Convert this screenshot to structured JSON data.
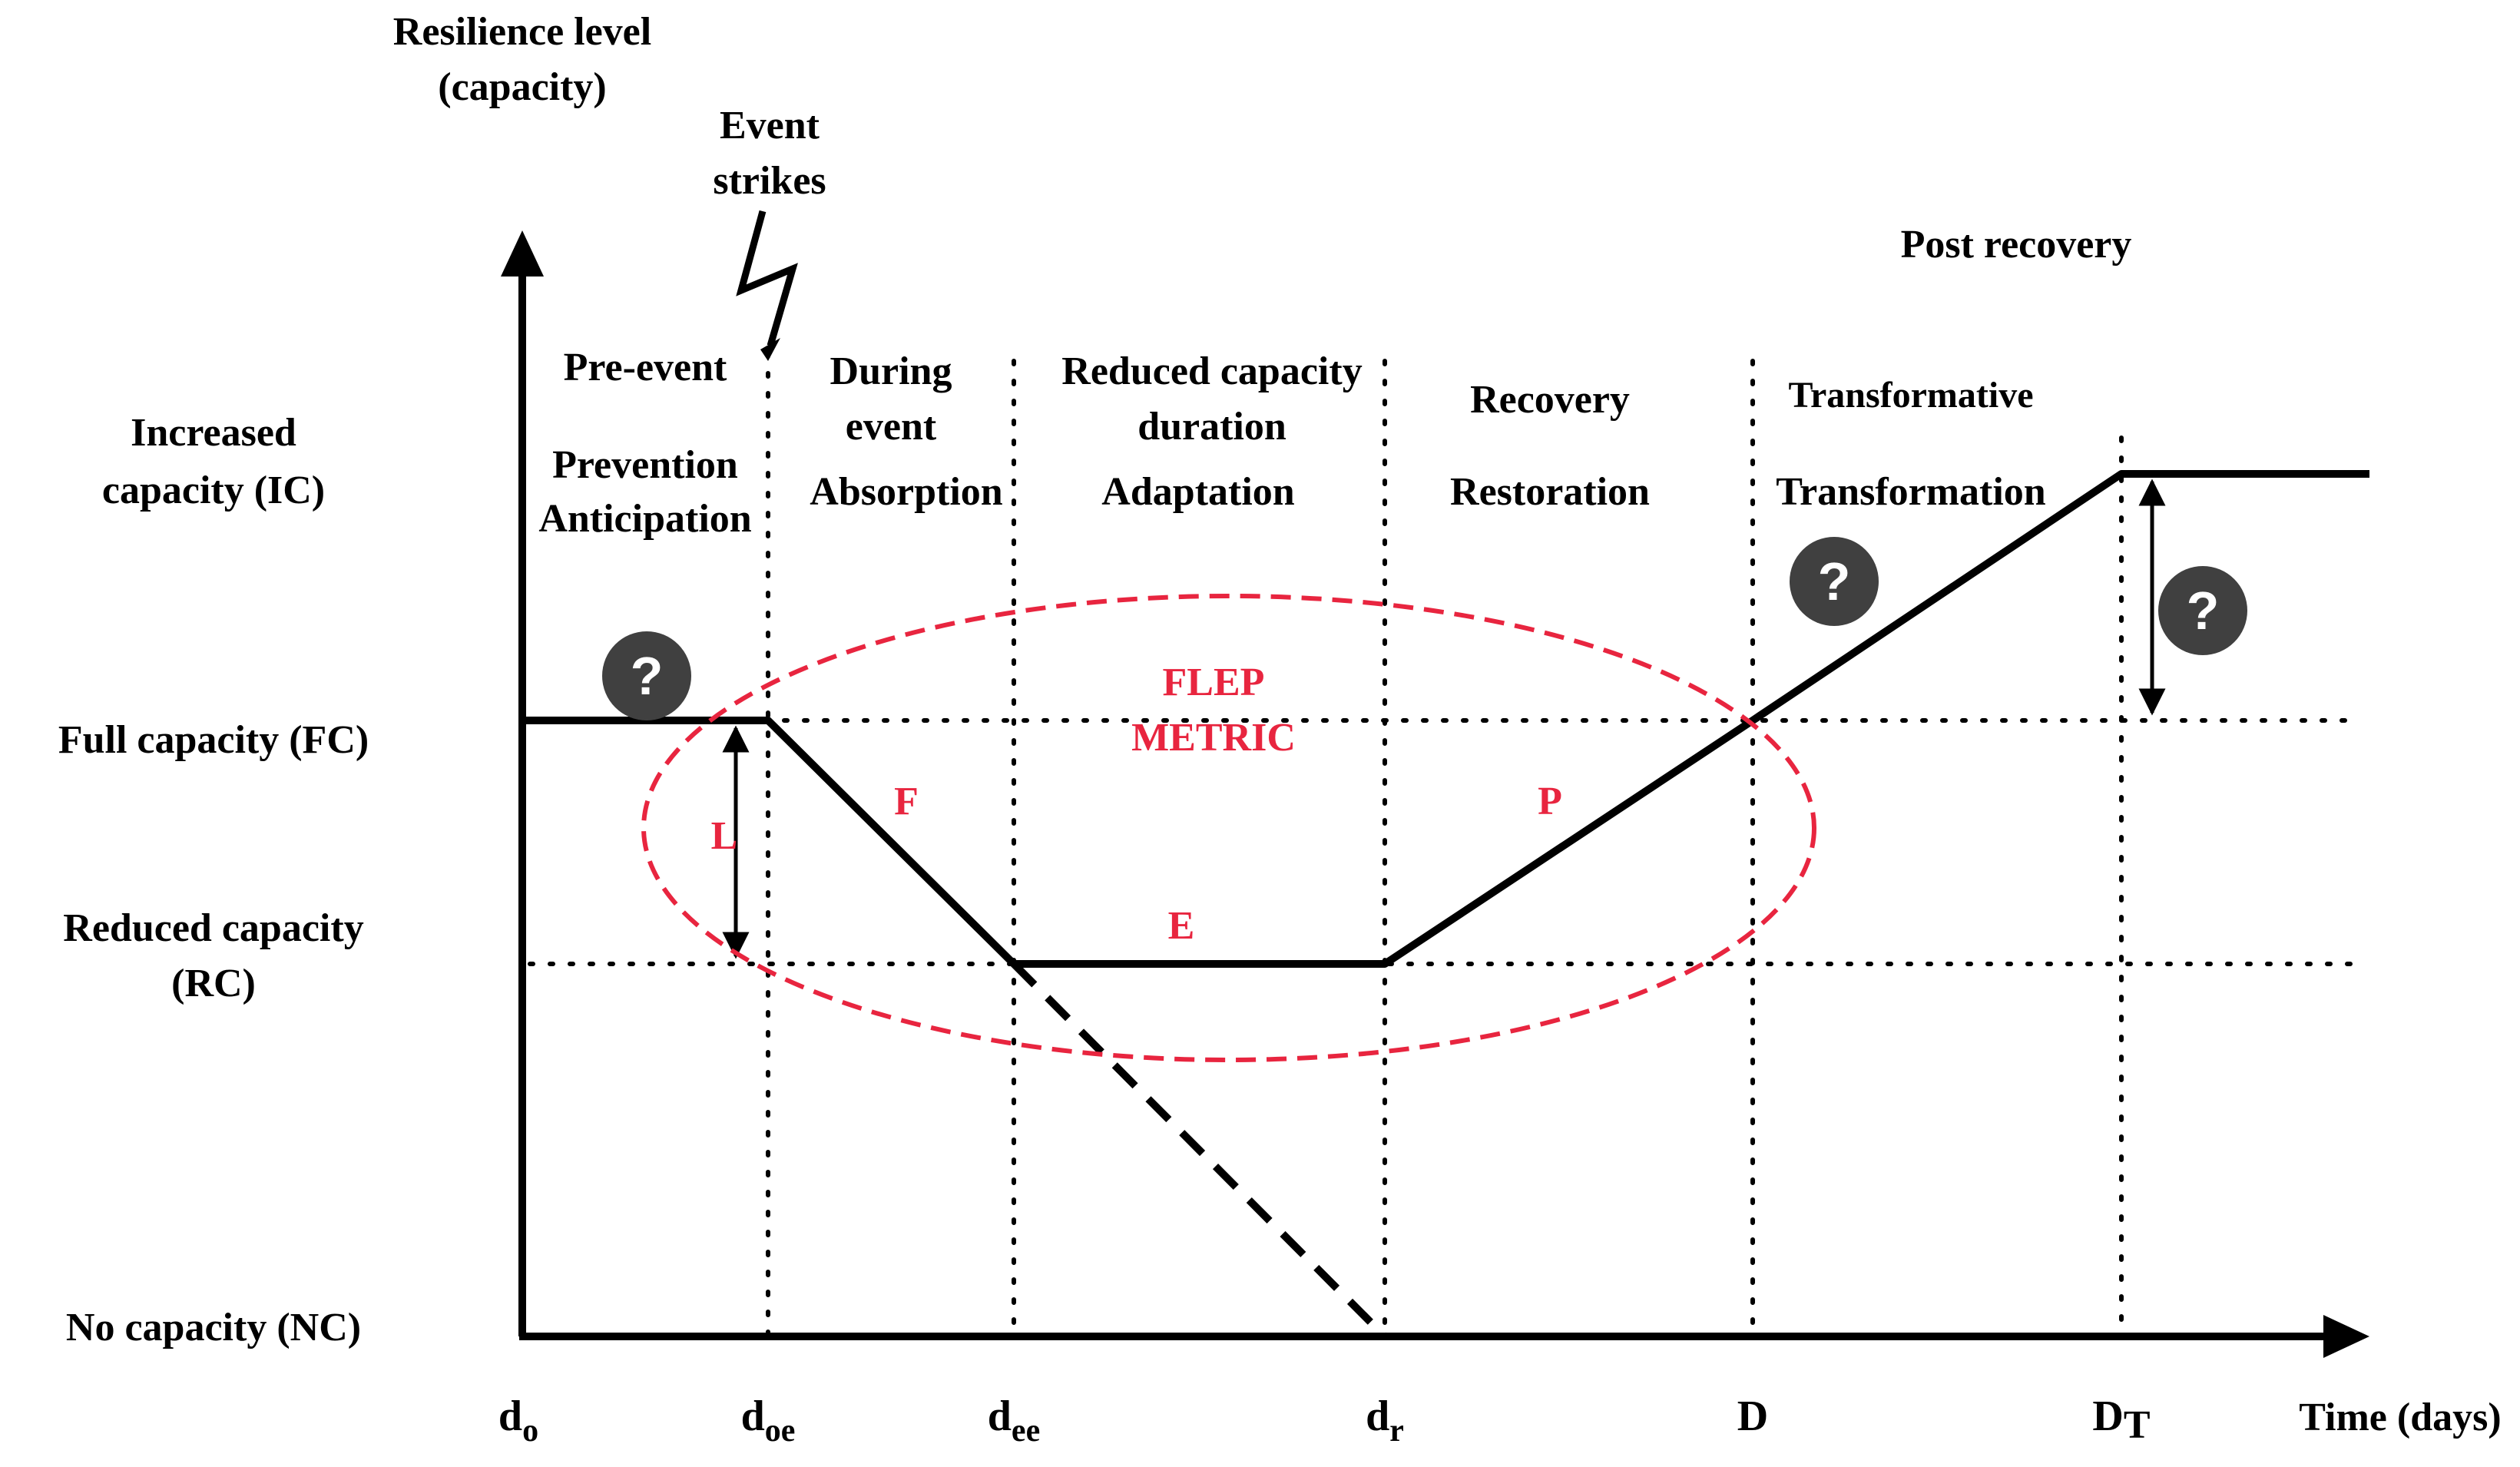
{
  "axes": {
    "y_title": [
      "Resilience level",
      "(capacity)"
    ],
    "x_title": "Time (days)"
  },
  "levels": {
    "ic": [
      "Increased",
      "capacity (IC)"
    ],
    "fc": "Full capacity (FC)",
    "rc": [
      "Reduced capacity",
      "(RC)"
    ],
    "nc": "No capacity (NC)"
  },
  "ticks": {
    "d0": {
      "main": "d",
      "sub": "o"
    },
    "doe": {
      "main": "d",
      "sub": "oe"
    },
    "dee": {
      "main": "d",
      "sub": "ee"
    },
    "dr": {
      "main": "d",
      "sub": "r"
    },
    "D": {
      "main": "D",
      "sub": ""
    },
    "DT": {
      "main": "D",
      "sub": "T"
    }
  },
  "event": [
    "Event",
    "strikes"
  ],
  "phases": {
    "pre_event": {
      "title": "Pre-event",
      "ability": [
        "Prevention",
        "Anticipation"
      ]
    },
    "during_event": {
      "title": [
        "During",
        "event"
      ],
      "ability": "Absorption"
    },
    "reduced": {
      "title": [
        "Reduced capacity",
        "duration"
      ],
      "ability": "Adaptation"
    },
    "recovery": {
      "title": "Recovery",
      "ability": "Restoration"
    },
    "transformative": {
      "title": "Transformative",
      "ability": "Transformation"
    },
    "post": {
      "title": "Post recovery"
    }
  },
  "flep": {
    "metric": [
      "FLEP",
      "METRIC"
    ],
    "F": "F",
    "L": "L",
    "E": "E",
    "P": "P",
    "color": "#e8253f"
  },
  "unknown_marker": "?"
}
